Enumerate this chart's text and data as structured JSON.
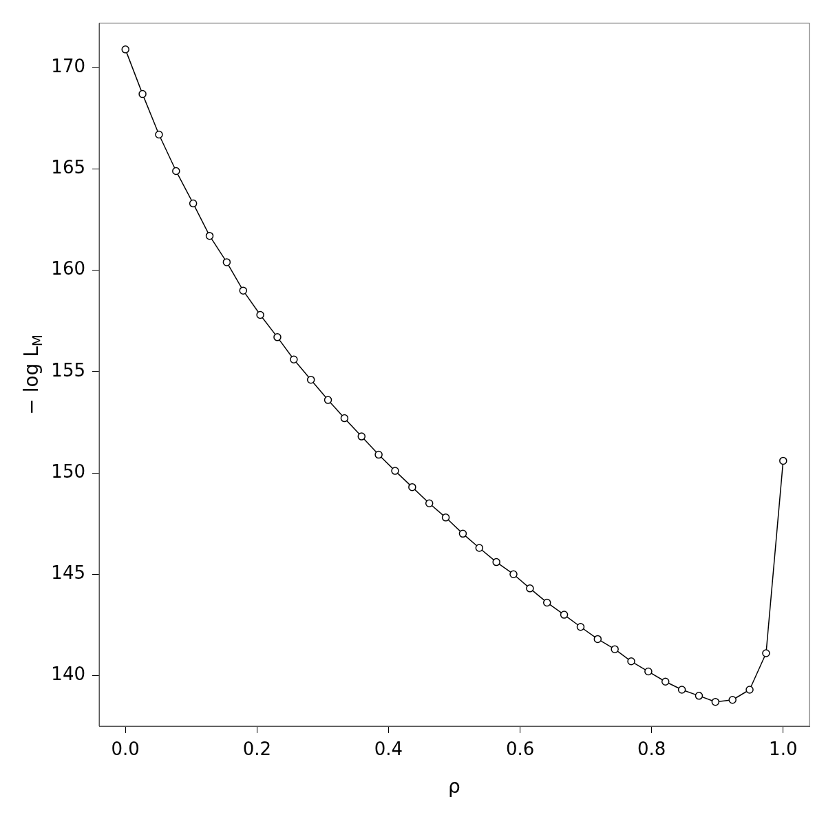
{
  "chart_data": {
    "type": "line",
    "xlabel": "ρ",
    "ylabel": "− log L$_{M}$",
    "x": [
      0,
      0.026,
      0.051,
      0.077,
      0.103,
      0.128,
      0.154,
      0.179,
      0.205,
      0.231,
      0.256,
      0.282,
      0.308,
      0.333,
      0.359,
      0.385,
      0.41,
      0.436,
      0.462,
      0.487,
      0.513,
      0.538,
      0.564,
      0.59,
      0.615,
      0.641,
      0.667,
      0.692,
      0.718,
      0.744,
      0.769,
      0.795,
      0.821,
      0.846,
      0.872,
      0.897,
      0.923,
      0.949,
      0.974,
      1
    ],
    "series": [
      {
        "color": "#000000",
        "values": [
          170.9,
          168.7,
          166.7,
          164.9,
          163.3,
          161.7,
          160.4,
          159.0,
          157.8,
          156.7,
          155.6,
          154.6,
          153.6,
          152.7,
          151.8,
          150.9,
          150.1,
          149.3,
          148.5,
          147.8,
          147.0,
          146.3,
          145.6,
          145.0,
          144.3,
          143.6,
          143.0,
          142.4,
          141.8,
          141.3,
          140.7,
          140.2,
          139.7,
          139.3,
          139.0,
          138.7,
          138.8,
          139.3,
          141.1,
          150.6
        ]
      }
    ],
    "xlim": [
      -0.04,
      1.04
    ],
    "xticks": [
      {
        "value": 0,
        "label": "0.0"
      },
      {
        "value": 0.2,
        "label": "0.2"
      },
      {
        "value": 0.4,
        "label": "0.4"
      },
      {
        "value": 0.6,
        "label": "0.6"
      },
      {
        "value": 0.8,
        "label": "0.8"
      },
      {
        "value": 1,
        "label": "1.0"
      }
    ],
    "ylim": [
      137.5,
      172.2
    ],
    "yticks": [
      140,
      145,
      150,
      155,
      160,
      165,
      170
    ],
    "grid": false,
    "legend": false,
    "marker": "circle",
    "line_style": "solid"
  }
}
